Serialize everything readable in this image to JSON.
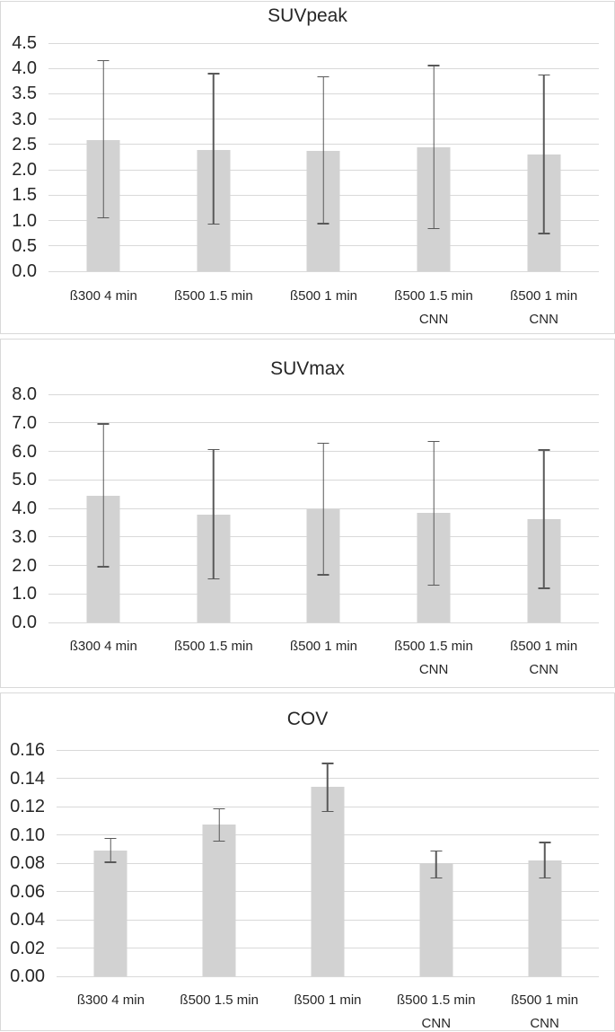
{
  "colors": {
    "panel_border": "#d9d9d9",
    "gridline": "#d9d9d9",
    "bar_fill": "#d2d2d2",
    "error_bar": "#595959",
    "text": "#262626",
    "background": "#ffffff"
  },
  "chart_data": [
    {
      "type": "bar",
      "title": "SUVpeak",
      "xlabel": "",
      "ylabel": "",
      "ylim": [
        0,
        4.5
      ],
      "ytick_step": 0.5,
      "ytick_decimals": 1,
      "grid": true,
      "legend": false,
      "categories": [
        "ß300 4 min",
        "ß500 1.5 min",
        "ß500 1 min",
        "ß500 1.5 min CNN",
        "ß500 1 min CNN"
      ],
      "category_lines": [
        [
          "ß300 4 min"
        ],
        [
          "ß500 1.5 min"
        ],
        [
          "ß500 1 min"
        ],
        [
          "ß500 1.5 min",
          "CNN"
        ],
        [
          "ß500 1 min",
          "CNN"
        ]
      ],
      "values": [
        2.59,
        2.4,
        2.37,
        2.45,
        2.3
      ],
      "error_low": [
        1.04,
        0.92,
        0.93,
        0.83,
        0.73
      ],
      "error_high": [
        4.17,
        3.91,
        3.85,
        4.07,
        3.88
      ]
    },
    {
      "type": "bar",
      "title": "SUVmax",
      "xlabel": "",
      "ylabel": "",
      "ylim": [
        0,
        8.0
      ],
      "ytick_step": 1.0,
      "ytick_decimals": 1,
      "grid": true,
      "legend": false,
      "categories": [
        "ß300 4 min",
        "ß500 1.5 min",
        "ß500 1 min",
        "ß500 1.5 min CNN",
        "ß500 1 min CNN"
      ],
      "category_lines": [
        [
          "ß300 4 min"
        ],
        [
          "ß500 1.5 min"
        ],
        [
          "ß500 1 min"
        ],
        [
          "ß500 1.5 min",
          "CNN"
        ],
        [
          "ß500 1 min",
          "CNN"
        ]
      ],
      "values": [
        4.43,
        3.79,
        3.97,
        3.83,
        3.61
      ],
      "error_low": [
        1.93,
        1.51,
        1.64,
        1.28,
        1.17
      ],
      "error_high": [
        6.98,
        6.08,
        6.3,
        6.37,
        6.07
      ]
    },
    {
      "type": "bar",
      "title": "COV",
      "xlabel": "",
      "ylabel": "",
      "ylim": [
        0,
        0.16
      ],
      "ytick_step": 0.02,
      "ytick_decimals": 2,
      "grid": true,
      "legend": false,
      "categories": [
        "ß300 4 min",
        "ß500 1.5 min",
        "ß500 1 min",
        "ß500 1.5 min CNN",
        "ß500 1 min CNN"
      ],
      "category_lines": [
        [
          "ß300 4 min"
        ],
        [
          "ß500 1.5 min"
        ],
        [
          "ß500 1 min"
        ],
        [
          "ß500 1.5 min",
          "CNN"
        ],
        [
          "ß500 1 min",
          "CNN"
        ]
      ],
      "values": [
        0.089,
        0.107,
        0.134,
        0.08,
        0.082
      ],
      "error_low": [
        0.08,
        0.095,
        0.116,
        0.069,
        0.069
      ],
      "error_high": [
        0.098,
        0.119,
        0.151,
        0.089,
        0.095
      ]
    }
  ]
}
